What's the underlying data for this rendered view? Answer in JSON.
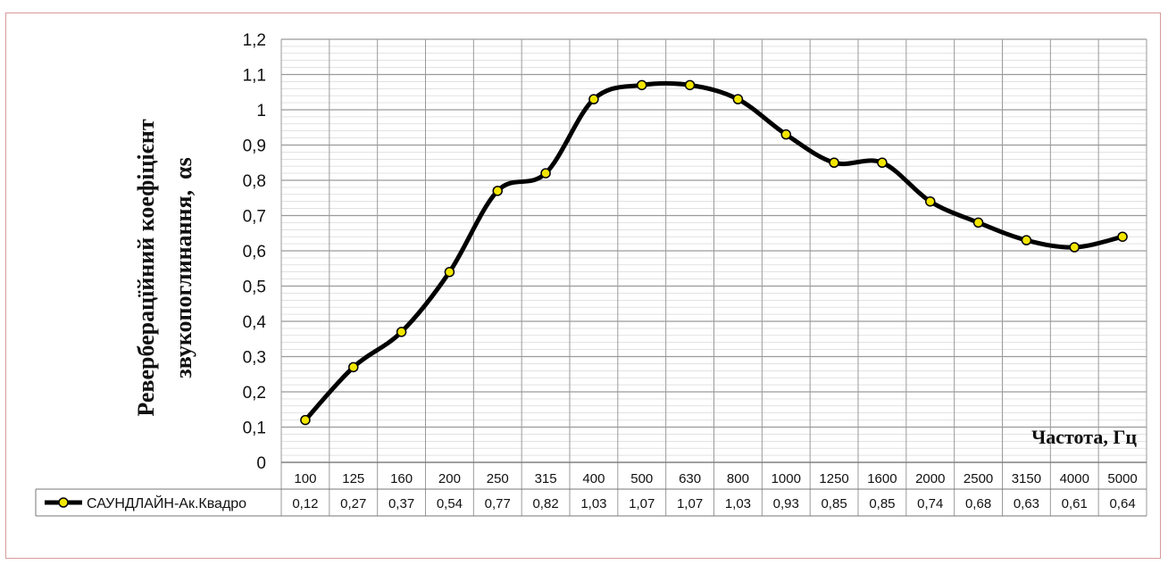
{
  "chart_data": {
    "type": "line",
    "title": "",
    "ylabel_line1": "Реверберацїйний коефіцієнт",
    "ylabel_line2": "звукопоглинання,",
    "ylabel_symbol": "αs",
    "xlabel": "Частота, Гц",
    "ylim": [
      0,
      1.2
    ],
    "y_ticks": [
      "0",
      "0,1",
      "0,2",
      "0,3",
      "0,4",
      "0,5",
      "0,6",
      "0,7",
      "0,8",
      "0,9",
      "1",
      "1,1",
      "1,2"
    ],
    "grid": true,
    "legend_placement": "bottom-left-table",
    "categories": [
      "100",
      "125",
      "160",
      "200",
      "250",
      "315",
      "400",
      "500",
      "630",
      "800",
      "1000",
      "1250",
      "1600",
      "2000",
      "2500",
      "3150",
      "4000",
      "5000"
    ],
    "series": [
      {
        "name": "САУНДЛАЙН-Ак.Квадро",
        "values": [
          0.12,
          0.27,
          0.37,
          0.54,
          0.77,
          0.82,
          1.03,
          1.07,
          1.07,
          1.03,
          0.93,
          0.85,
          0.85,
          0.74,
          0.68,
          0.63,
          0.61,
          0.64
        ],
        "value_labels": [
          "0,12",
          "0,27",
          "0,37",
          "0,54",
          "0,77",
          "0,82",
          "1,03",
          "1,07",
          "1,07",
          "1,03",
          "0,93",
          "0,85",
          "0,85",
          "0,74",
          "0,68",
          "0,63",
          "0,61",
          "0,64"
        ],
        "line_color": "#000000",
        "marker_color": "#f2e600"
      }
    ]
  }
}
